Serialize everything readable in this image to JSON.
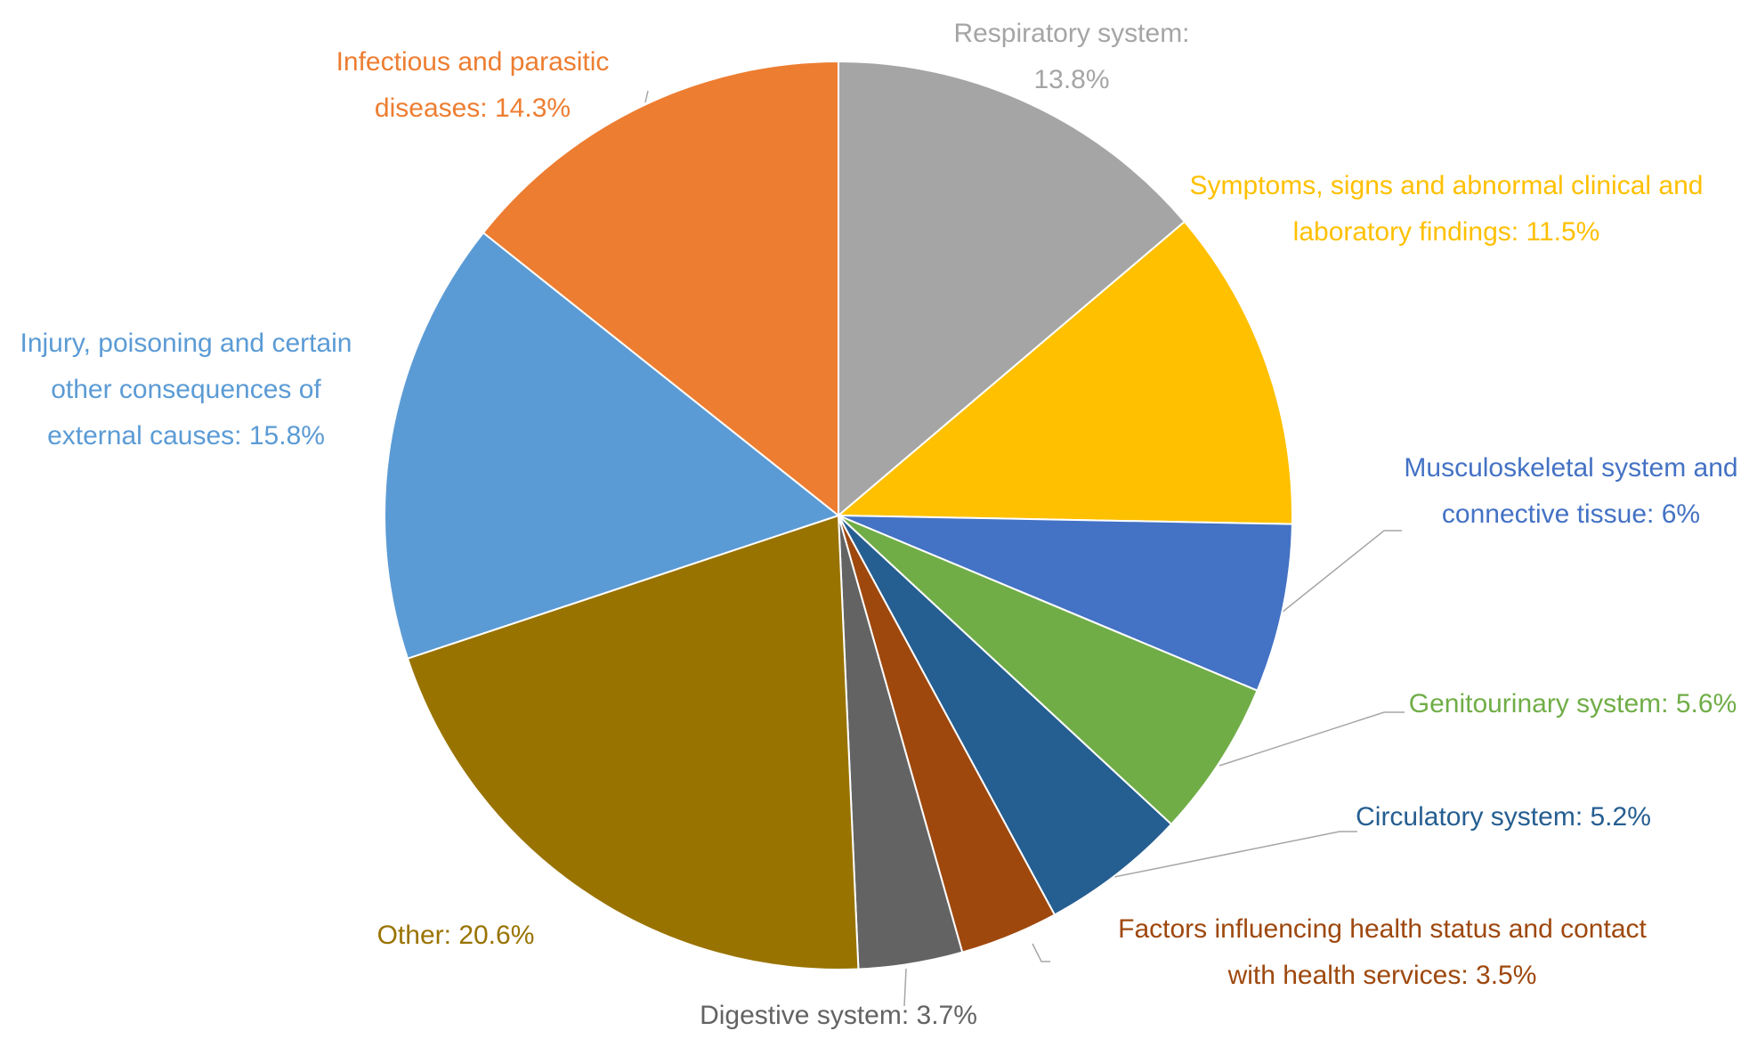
{
  "chart_data": {
    "type": "pie",
    "categories": [
      "Respiratory system:",
      "Symptoms, signs and abnormal clinical and laboratory findings:",
      "Musculoskeletal system and connective tissue:",
      "Genitourinary system:",
      "Circulatory system:",
      "Factors influencing health status and contact with health services:",
      "Digestive system:",
      "Other:",
      "Injury, poisoning and certain other consequences of external causes:",
      "Infectious and parasitic diseases:"
    ],
    "values": [
      13.8,
      11.5,
      6,
      5.6,
      5.2,
      3.5,
      3.7,
      20.6,
      15.8,
      14.3
    ],
    "value_labels": [
      "13.8%",
      "11.5%",
      "6%",
      "5.6%",
      "5.2%",
      "3.5%",
      "3.7%",
      "20.6%",
      "15.8%",
      "14.3%"
    ],
    "colors": [
      "#a5a5a5",
      "#ffc000",
      "#4472c4",
      "#70ad47",
      "#255e91",
      "#9e480e",
      "#636363",
      "#997300",
      "#5b9bd5",
      "#ed7d31"
    ]
  }
}
